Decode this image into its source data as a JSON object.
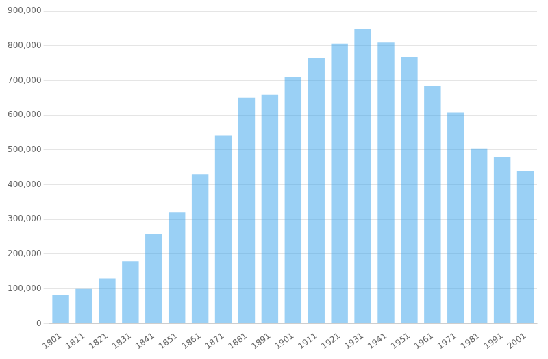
{
  "chart_data": {
    "type": "bar",
    "categories": [
      "1801",
      "1811",
      "1821",
      "1831",
      "1841",
      "1851",
      "1861",
      "1871",
      "1881",
      "1891",
      "1901",
      "1911",
      "1921",
      "1931",
      "1941",
      "1951",
      "1961",
      "1971",
      "1981",
      "1991",
      "2001"
    ],
    "values": [
      82295,
      100000,
      130000,
      180000,
      258000,
      320000,
      430000,
      542000,
      650000,
      660000,
      710000,
      765000,
      806000,
      847000,
      809000,
      768000,
      685000,
      607000,
      504000,
      480000,
      440000
    ],
    "ylim": [
      0,
      900000
    ],
    "yticks": [
      0,
      {
        "value": 100000,
        "label": "100,000"
      },
      {
        "value": 200000,
        "label": "200,000"
      },
      {
        "value": 300000,
        "label": "300,000"
      },
      {
        "value": 400000,
        "label": "400,000"
      },
      {
        "value": 500000,
        "label": "500,000"
      },
      {
        "value": 600000,
        "label": "600,000"
      },
      {
        "value": 700000,
        "label": "700,000"
      },
      {
        "value": 800000,
        "label": "800,000"
      },
      {
        "value": 900000,
        "label": "900,000"
      }
    ],
    "grid": true
  }
}
